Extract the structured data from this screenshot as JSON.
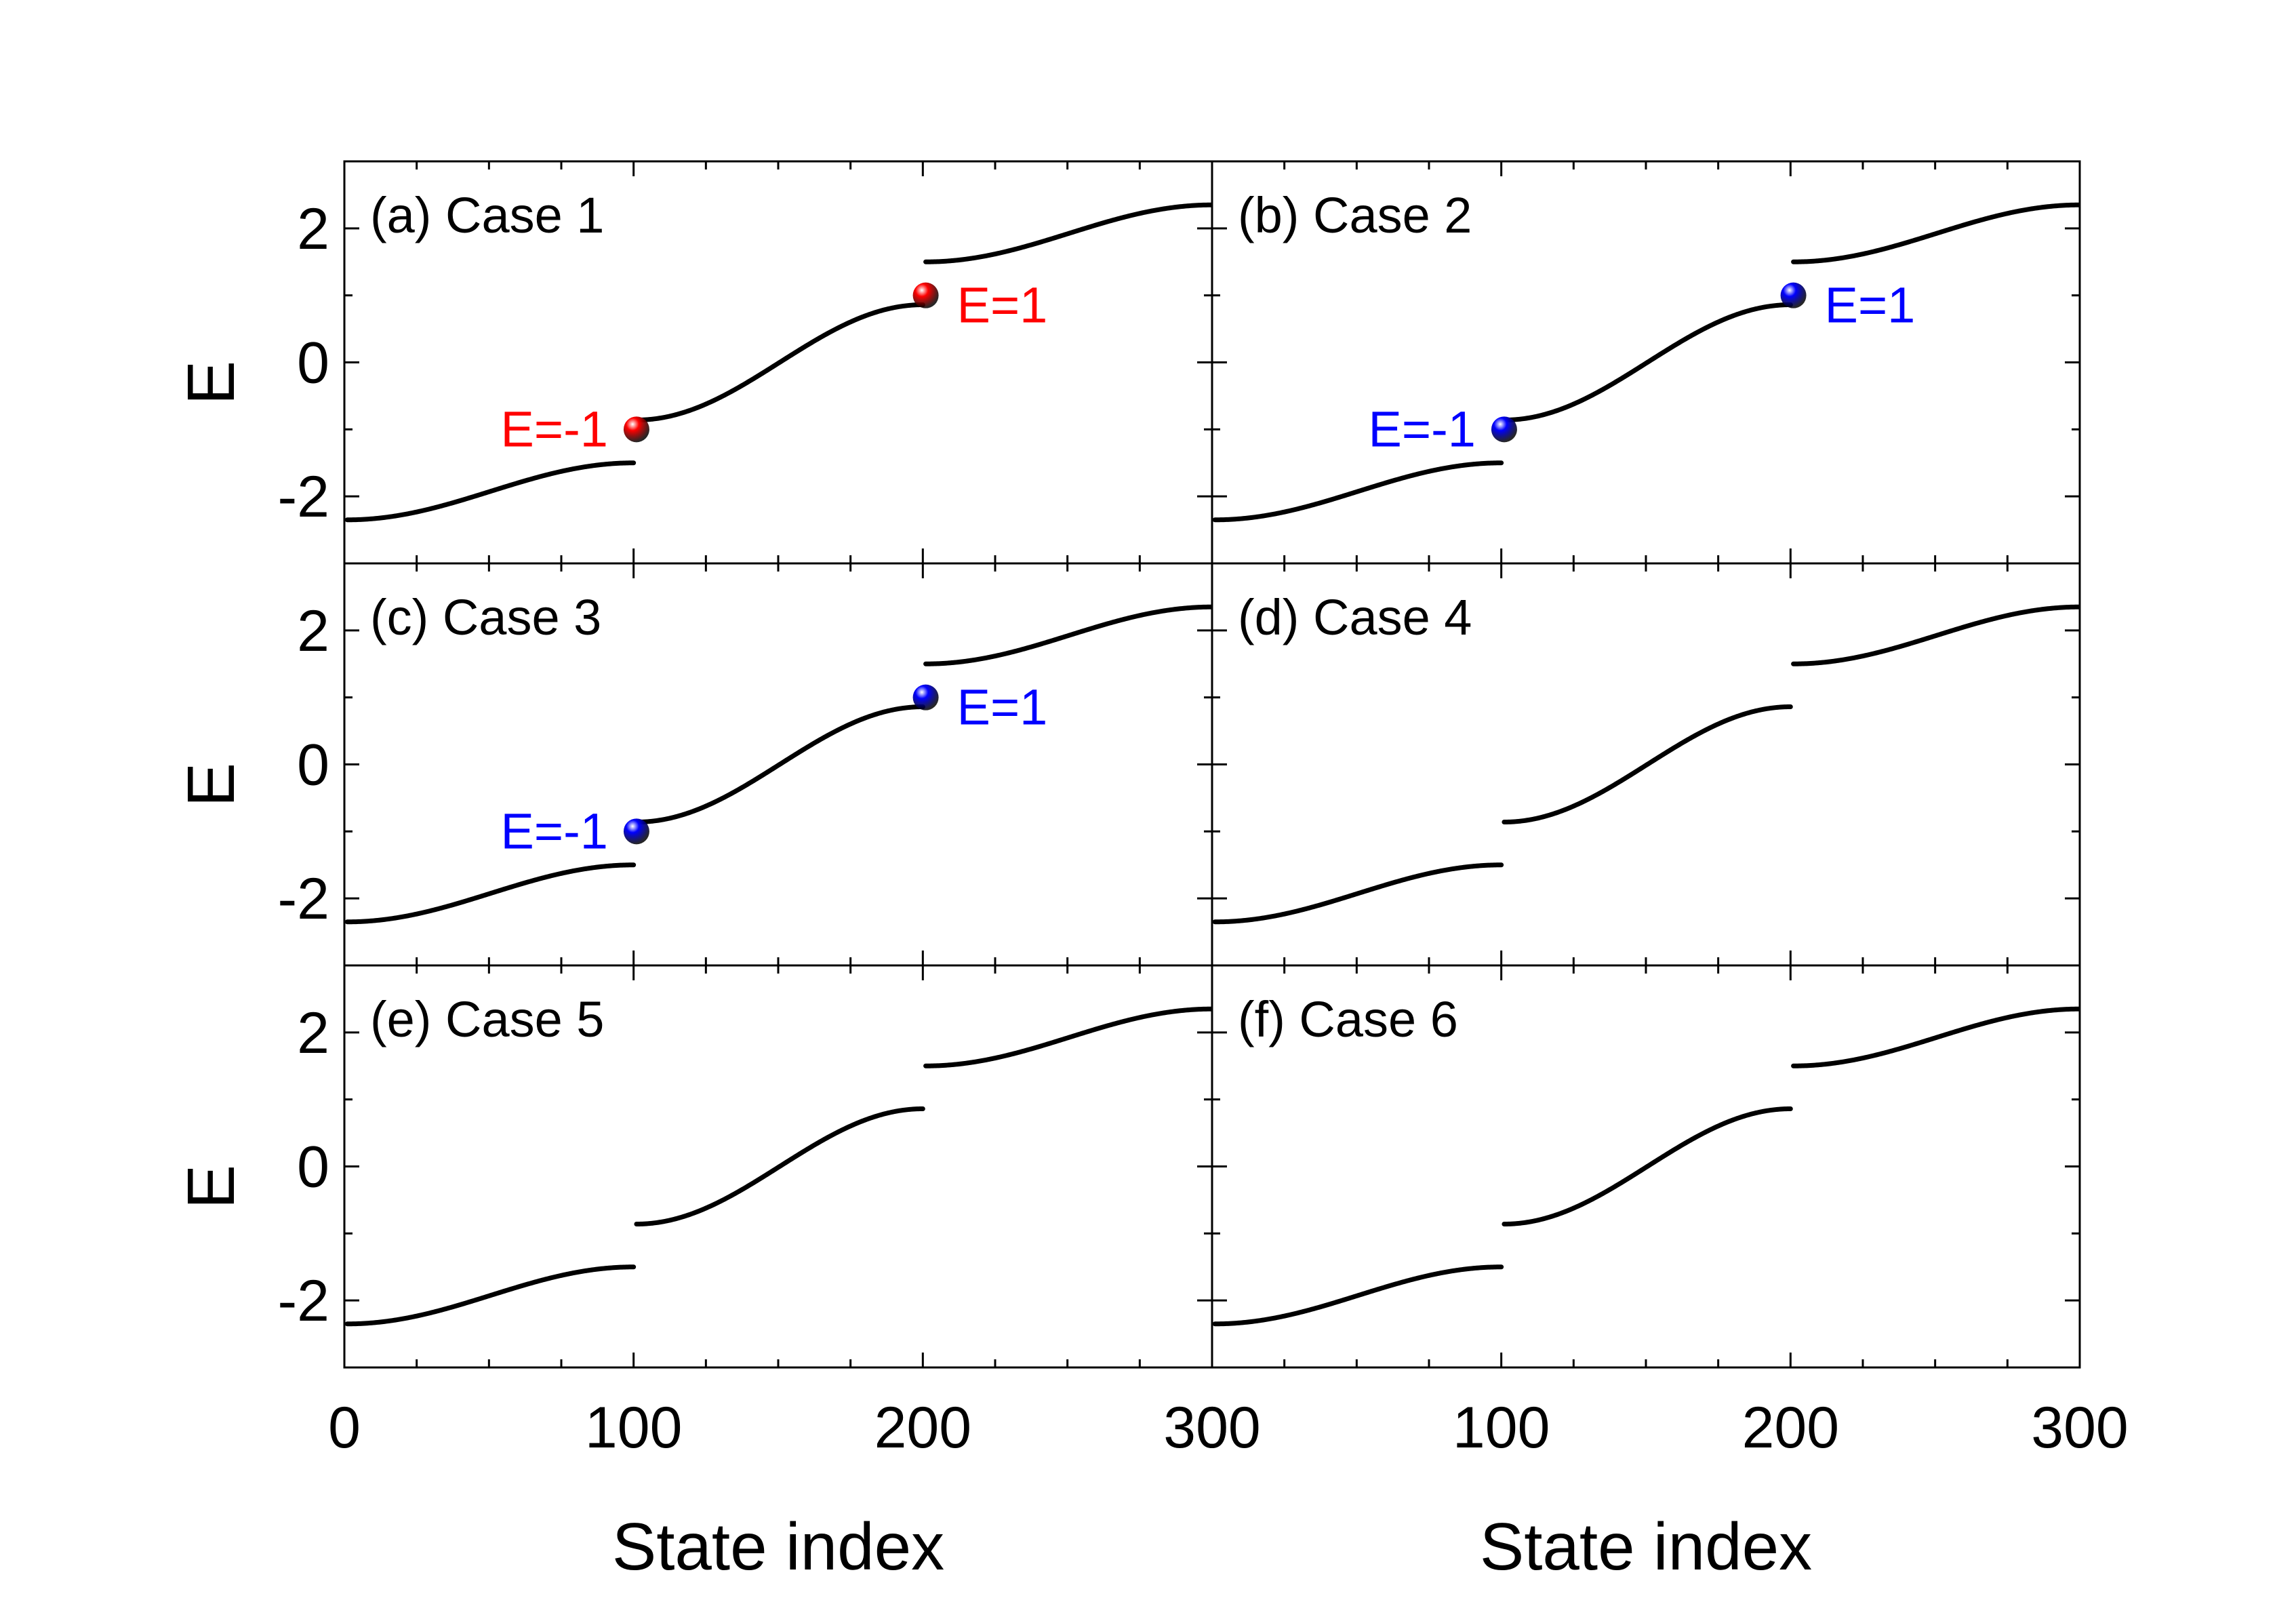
{
  "chart_data": {
    "type": "scatter",
    "layout": "3 rows x 2 columns, shared axes",
    "xlabel": "State index",
    "ylabel": "E",
    "xlim": [
      0,
      300
    ],
    "ylim": [
      -3,
      3
    ],
    "xticks": [
      0,
      100,
      200,
      300
    ],
    "xtick_labels": [
      "0",
      "100",
      "200",
      "300"
    ],
    "yticks": [
      -2,
      0,
      2
    ],
    "ytick_labels": [
      "-2",
      "0",
      "2"
    ],
    "spectrum_segments": [
      {
        "name": "lower band",
        "x": [
          1,
          100
        ],
        "y": [
          -2.35,
          -1.5
        ]
      },
      {
        "name": "middle band",
        "x": [
          101,
          200
        ],
        "y": [
          -0.86,
          0.86
        ]
      },
      {
        "name": "upper band",
        "x": [
          201,
          300
        ],
        "y": [
          1.5,
          2.35
        ]
      }
    ],
    "panels": [
      {
        "id": "a",
        "title": "(a) Case 1",
        "highlight_color": "#ff0000",
        "highlights": [
          {
            "x": 101,
            "y": -1,
            "label": "E=-1"
          },
          {
            "x": 201,
            "y": 1,
            "label": "E=1"
          }
        ]
      },
      {
        "id": "b",
        "title": "(b) Case 2",
        "highlight_color": "#0000ff",
        "highlights": [
          {
            "x": 101,
            "y": -1,
            "label": "E=-1"
          },
          {
            "x": 201,
            "y": 1,
            "label": "E=1"
          }
        ]
      },
      {
        "id": "c",
        "title": "(c) Case 3",
        "highlight_color": "#0000ff",
        "highlights": [
          {
            "x": 101,
            "y": -1,
            "label": "E=-1"
          },
          {
            "x": 201,
            "y": 1,
            "label": "E=1"
          }
        ]
      },
      {
        "id": "d",
        "title": "(d) Case 4",
        "highlight_color": "#0000ff",
        "highlights": []
      },
      {
        "id": "e",
        "title": "(e) Case 5",
        "highlight_color": "#0000ff",
        "highlights": []
      },
      {
        "id": "f",
        "title": "(f) Case 6",
        "highlight_color": "#0000ff",
        "highlights": []
      }
    ]
  }
}
